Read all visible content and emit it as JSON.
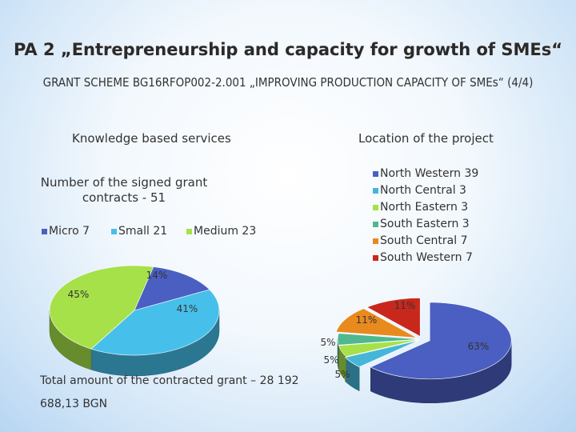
{
  "title": "PA 2 „Entrepreneurship and capacity for growth of SMEs“",
  "subtitle": "GRANT SCHEME BG16RFOP002-2.001 „IMPROVING PRODUCTION CAPACITY OF SMEs“ (4/4)",
  "left_header": "Knowledge based services",
  "right_header": "Location of the project",
  "total_text": "Total amount of the contracted grant – 28 192 688,13 BGN",
  "chart_data": [
    {
      "type": "pie",
      "title": "Number of the signed grant contracts - 51",
      "legend_position": "top",
      "slices": [
        {
          "label": "Micro 7",
          "value": 7,
          "percent_label": "14%",
          "color": "#4a5fc1"
        },
        {
          "label": "Small 21",
          "value": 21,
          "percent_label": "41%",
          "color": "#46c0ea"
        },
        {
          "label": "Medium 23",
          "value": 23,
          "percent_label": "45%",
          "color": "#a6e14a"
        }
      ]
    },
    {
      "type": "pie",
      "title": "",
      "legend_position": "right",
      "slices": [
        {
          "label": "North Western 39",
          "value": 39,
          "percent_label": "63%",
          "color": "#4a5fc1"
        },
        {
          "label": "North Central 3",
          "value": 3,
          "percent_label": "5%",
          "color": "#46b6d8"
        },
        {
          "label": "North Eastern 3",
          "value": 3,
          "percent_label": "5%",
          "color": "#a6e14a"
        },
        {
          "label": "South Eastern 3",
          "value": 3,
          "percent_label": "5%",
          "color": "#4fb88f"
        },
        {
          "label": "South Central 7",
          "value": 7,
          "percent_label": "11%",
          "color": "#e98a1e"
        },
        {
          "label": "South Western 7",
          "value": 7,
          "percent_label": "11%",
          "color": "#c8281c"
        }
      ]
    }
  ]
}
